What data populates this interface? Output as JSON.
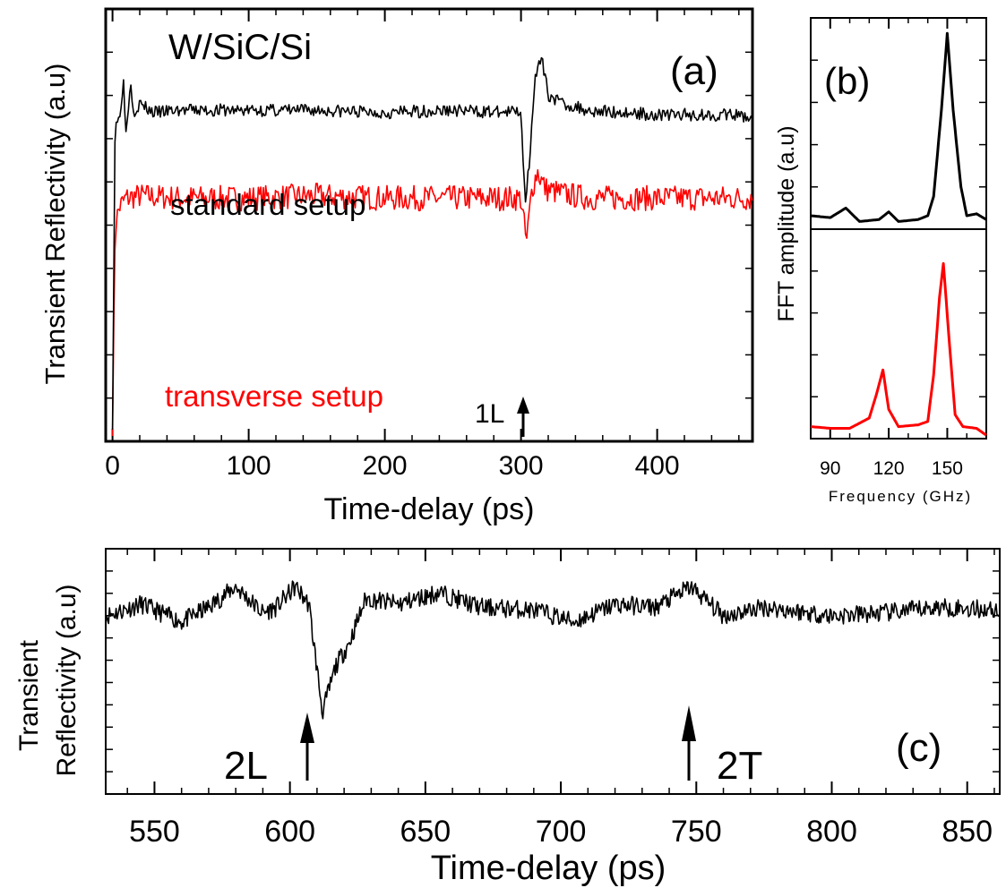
{
  "chart_data": [
    {
      "panel": "(a)",
      "type": "line",
      "title": "W/SiC/Si",
      "xlabel": "Time-delay (ps)",
      "ylabel": "Transient Reflectivity (a.u)",
      "xlim": [
        -5,
        470
      ],
      "xticks": [
        0,
        100,
        200,
        300,
        400
      ],
      "series": [
        {
          "name": "standard setup",
          "color": "#000000",
          "x": [
            0,
            2,
            3,
            5,
            8,
            10,
            13,
            16,
            20,
            30,
            50,
            100,
            150,
            200,
            250,
            290,
            300,
            303,
            306,
            310,
            315,
            320,
            330,
            350,
            400,
            450,
            470
          ],
          "y": [
            -6.0,
            1.0,
            0.6,
            0.8,
            1.6,
            0.4,
            1.6,
            0.9,
            1.1,
            0.9,
            0.95,
            0.95,
            0.95,
            0.9,
            0.95,
            0.9,
            0.95,
            -1.1,
            -0.2,
            1.6,
            2.1,
            1.3,
            1.1,
            0.95,
            0.85,
            0.85,
            0.8
          ]
        },
        {
          "name": "transverse setup",
          "color": "#ff0000",
          "x": [
            0,
            2,
            5,
            10,
            20,
            50,
            100,
            150,
            200,
            250,
            300,
            304,
            308,
            312,
            318,
            330,
            350,
            400,
            450,
            470
          ],
          "y": [
            -6.0,
            -1.6,
            -1.2,
            -1.0,
            -0.95,
            -1.0,
            -1.0,
            -0.95,
            -1.0,
            -1.0,
            -1.0,
            -2.0,
            -0.8,
            -0.4,
            -0.8,
            -0.9,
            -1.0,
            -1.0,
            -1.0,
            -1.0
          ]
        }
      ],
      "annotations": [
        {
          "text": "standard setup",
          "color": "#000000"
        },
        {
          "text": "transverse setup",
          "color": "#ff0000"
        },
        {
          "text": "1L",
          "x": 300,
          "color": "#000000"
        }
      ]
    },
    {
      "panel": "(b)",
      "type": "line",
      "xlabel": "Frequency (GHz)",
      "ylabel": "FFT amplitude (a.u)",
      "xlim": [
        80,
        170
      ],
      "xticks": [
        90,
        120,
        150
      ],
      "xtick_labels": [
        "90",
        "120",
        "150"
      ],
      "series": [
        {
          "name": "standard setup",
          "color": "#000000",
          "x": [
            80,
            90,
            98,
            105,
            115,
            120,
            125,
            135,
            140,
            143,
            147,
            150,
            153,
            157,
            160,
            165,
            170
          ],
          "y": [
            0.05,
            0.04,
            0.09,
            0.02,
            0.03,
            0.07,
            0.02,
            0.03,
            0.05,
            0.15,
            0.6,
            1.0,
            0.6,
            0.2,
            0.05,
            0.06,
            0.03
          ]
        },
        {
          "name": "transverse setup",
          "color": "#ff0000",
          "x": [
            80,
            90,
            100,
            110,
            114,
            117,
            120,
            125,
            135,
            140,
            143,
            146,
            148,
            151,
            154,
            158,
            165,
            170
          ],
          "y": [
            0.05,
            0.04,
            0.04,
            0.1,
            0.25,
            0.38,
            0.15,
            0.05,
            0.06,
            0.08,
            0.35,
            0.8,
            1.0,
            0.55,
            0.12,
            0.05,
            0.04,
            0.0
          ]
        }
      ]
    },
    {
      "panel": "(c)",
      "type": "line",
      "xlabel": "Time-delay (ps)",
      "ylabel": "Transient Reflectivity (a.u)",
      "xlim": [
        532,
        862
      ],
      "xticks": [
        550,
        600,
        650,
        700,
        750,
        800,
        850
      ],
      "series": [
        {
          "name": "",
          "color": "#000000",
          "x": [
            532,
            545,
            560,
            570,
            580,
            590,
            595,
            602,
            607,
            612,
            617,
            622,
            628,
            640,
            655,
            670,
            690,
            705,
            720,
            735,
            748,
            760,
            775,
            800,
            820,
            840,
            862
          ],
          "y": [
            0.05,
            0.25,
            -0.05,
            0.2,
            0.55,
            0.1,
            0.2,
            0.55,
            0.25,
            -1.6,
            -0.8,
            -0.4,
            0.35,
            0.25,
            0.45,
            0.2,
            0.15,
            -0.05,
            0.25,
            0.2,
            0.55,
            0.05,
            0.2,
            0.05,
            0.1,
            0.2,
            0.15
          ]
        }
      ],
      "annotations": [
        {
          "text": "2L",
          "x": 605
        },
        {
          "text": "2T",
          "x": 746
        }
      ]
    }
  ],
  "labels": {
    "a_title": "W/SiC/Si",
    "a_panel": "(a)",
    "b_panel": "(b)",
    "c_panel": "(c)",
    "std_label": "standard setup",
    "trans_label": "transverse setup",
    "arrow_1L": "1L",
    "arrow_2L": "2L",
    "arrow_2T": "2T",
    "a_ylabel": "Transient Reflectivity (a.u)",
    "b_ylabel": "FFT amplitude (a.u)",
    "c_ylabel_line1": "Transient",
    "c_ylabel_line2": "Reflectivity (a.u)",
    "a_xlabel": "Time-delay (ps)",
    "b_xlabel": "Frequency (GHz)",
    "c_xlabel": "Time-delay (ps)"
  }
}
